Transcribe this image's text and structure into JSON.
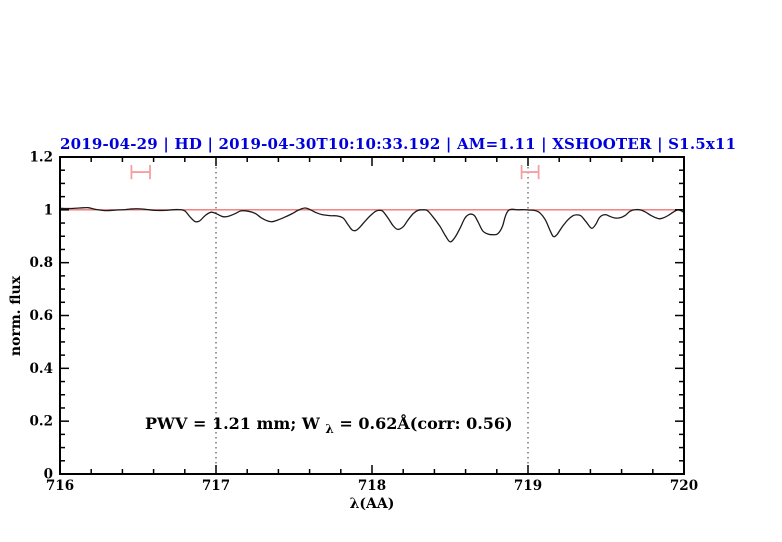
{
  "chart_data": {
    "type": "line",
    "title": "2019-04-29 | HD | 2019-04-30T10:10:33.192 | AM=1.11 | XSHOOTER | S1.5x11",
    "title_color": "#0000dd",
    "xlabel": "λ(AA)",
    "ylabel": "norm. flux",
    "xlim": [
      716,
      720
    ],
    "ylim": [
      0,
      1.2
    ],
    "x_major_ticks": [
      716,
      717,
      718,
      719,
      720
    ],
    "x_major_labels": [
      "716",
      "717",
      "718",
      "719",
      "720"
    ],
    "x_minor_step": 0.2,
    "y_major_ticks": [
      0,
      0.2,
      0.4,
      0.6,
      0.8,
      1,
      1.2
    ],
    "y_major_labels": [
      "0",
      "0.2",
      "0.4",
      "0.6",
      "0.8",
      "1",
      "1.2"
    ],
    "y_minor_step": 0.05,
    "grid": "off",
    "legend": "none",
    "reference_line": {
      "y": 1.0,
      "color": "#f07575"
    },
    "dotted_vlines": {
      "x": [
        717,
        719
      ],
      "color": "#444444"
    },
    "error_bars": {
      "color": "#f5a0a0",
      "items": [
        {
          "x1": 716.458,
          "x2": 716.577,
          "y": 1.143,
          "cap": 0.027
        },
        {
          "x1": 718.959,
          "x2": 719.068,
          "y": 1.143,
          "cap": 0.027
        }
      ]
    },
    "annotation": {
      "prefix": "PWV  =  1.21  mm;  W",
      "sub": "λ",
      "suffix": "  =  0.62Å(corr:  0.56)",
      "color": "#0000dd"
    },
    "series": [
      {
        "name": "spectrum",
        "color": "#1c1c1c",
        "points": [
          [
            716.0,
            1.006
          ],
          [
            716.06,
            1.005
          ],
          [
            716.125,
            1.007
          ],
          [
            716.18,
            1.008
          ],
          [
            716.225,
            1.002
          ],
          [
            716.29,
            0.997
          ],
          [
            716.355,
            0.999
          ],
          [
            716.42,
            1.001
          ],
          [
            716.48,
            1.004
          ],
          [
            716.545,
            1.002
          ],
          [
            716.61,
            0.998
          ],
          [
            716.675,
            0.998
          ],
          [
            716.72,
            1.0
          ],
          [
            716.76,
            1.001
          ],
          [
            716.8,
            0.996
          ],
          [
            716.835,
            0.972
          ],
          [
            716.865,
            0.956
          ],
          [
            716.895,
            0.958
          ],
          [
            716.93,
            0.978
          ],
          [
            716.97,
            0.991
          ],
          [
            717.01,
            0.983
          ],
          [
            717.045,
            0.974
          ],
          [
            717.08,
            0.976
          ],
          [
            717.12,
            0.985
          ],
          [
            717.16,
            0.996
          ],
          [
            717.205,
            0.995
          ],
          [
            717.25,
            0.987
          ],
          [
            717.29,
            0.97
          ],
          [
            717.33,
            0.958
          ],
          [
            717.36,
            0.955
          ],
          [
            717.395,
            0.961
          ],
          [
            717.44,
            0.972
          ],
          [
            717.49,
            0.986
          ],
          [
            717.525,
            0.998
          ],
          [
            717.57,
            1.007
          ],
          [
            717.605,
            1.0
          ],
          [
            717.64,
            0.99
          ],
          [
            717.68,
            0.982
          ],
          [
            717.73,
            0.978
          ],
          [
            717.775,
            0.977
          ],
          [
            717.815,
            0.969
          ],
          [
            717.845,
            0.945
          ],
          [
            717.872,
            0.924
          ],
          [
            717.897,
            0.922
          ],
          [
            717.925,
            0.936
          ],
          [
            717.96,
            0.96
          ],
          [
            717.995,
            0.981
          ],
          [
            718.025,
            0.995
          ],
          [
            718.05,
            0.998
          ],
          [
            718.07,
            0.994
          ],
          [
            718.105,
            0.967
          ],
          [
            718.135,
            0.94
          ],
          [
            718.165,
            0.926
          ],
          [
            718.2,
            0.936
          ],
          [
            718.23,
            0.961
          ],
          [
            718.265,
            0.986
          ],
          [
            718.295,
            0.998
          ],
          [
            718.325,
            1.0
          ],
          [
            718.355,
            0.997
          ],
          [
            718.39,
            0.974
          ],
          [
            718.435,
            0.938
          ],
          [
            718.47,
            0.903
          ],
          [
            718.5,
            0.879
          ],
          [
            718.53,
            0.894
          ],
          [
            718.565,
            0.931
          ],
          [
            718.595,
            0.968
          ],
          [
            718.625,
            0.983
          ],
          [
            718.655,
            0.979
          ],
          [
            718.68,
            0.954
          ],
          [
            718.71,
            0.92
          ],
          [
            718.745,
            0.908
          ],
          [
            718.775,
            0.906
          ],
          [
            718.805,
            0.909
          ],
          [
            718.835,
            0.936
          ],
          [
            718.855,
            0.976
          ],
          [
            718.875,
            0.998
          ],
          [
            718.9,
            1.002
          ],
          [
            718.935,
            1.0
          ],
          [
            718.975,
            1.001
          ],
          [
            719.005,
            0.999
          ],
          [
            719.04,
            0.998
          ],
          [
            719.075,
            0.989
          ],
          [
            719.11,
            0.963
          ],
          [
            719.14,
            0.924
          ],
          [
            719.162,
            0.899
          ],
          [
            719.185,
            0.906
          ],
          [
            719.22,
            0.936
          ],
          [
            719.255,
            0.962
          ],
          [
            719.29,
            0.978
          ],
          [
            719.315,
            0.981
          ],
          [
            719.34,
            0.977
          ],
          [
            719.372,
            0.955
          ],
          [
            719.408,
            0.93
          ],
          [
            719.435,
            0.946
          ],
          [
            719.46,
            0.972
          ],
          [
            719.495,
            0.982
          ],
          [
            719.525,
            0.975
          ],
          [
            719.558,
            0.969
          ],
          [
            719.59,
            0.97
          ],
          [
            719.622,
            0.978
          ],
          [
            719.655,
            0.995
          ],
          [
            719.69,
            1.001
          ],
          [
            719.725,
            0.999
          ],
          [
            719.755,
            0.991
          ],
          [
            719.788,
            0.979
          ],
          [
            719.82,
            0.97
          ],
          [
            719.845,
            0.966
          ],
          [
            719.878,
            0.972
          ],
          [
            719.91,
            0.983
          ],
          [
            719.935,
            0.993
          ],
          [
            719.96,
            1.0
          ],
          [
            719.98,
            0.997
          ],
          [
            720.0,
            0.99
          ]
        ]
      }
    ]
  }
}
